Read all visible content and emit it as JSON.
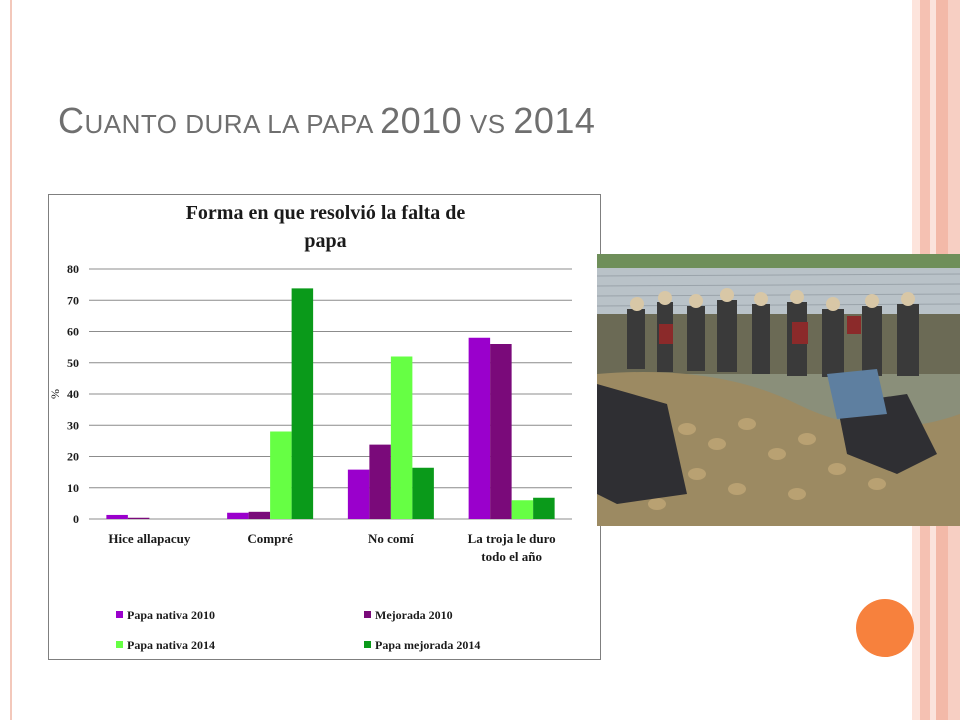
{
  "slide": {
    "title": "Cuanto dura la papa 2010 vs 2014",
    "title_parts": [
      {
        "text": "C",
        "big": true
      },
      {
        "text": "UANTO DURA LA PAPA ",
        "big": false
      },
      {
        "text": "2010",
        "big": true
      },
      {
        "text": " VS ",
        "big": false
      },
      {
        "text": "2014",
        "big": true
      }
    ]
  },
  "colors": {
    "title_text": "#6f6f6f",
    "accent_orange": "#f7813d",
    "accent_pink": "#f2b6a6",
    "accent_pink_light": "#fad8cf"
  },
  "photo": {
    "icon": "photo-icon"
  },
  "chart_data": {
    "type": "bar",
    "title_lines": [
      "Forma en que resolvió la falta de",
      "papa"
    ],
    "ylabel": "%",
    "xlabel": "",
    "ylim": [
      0,
      80
    ],
    "yticks": [
      0,
      10,
      20,
      30,
      40,
      50,
      60,
      70,
      80
    ],
    "grid": true,
    "legend_position": "bottom",
    "categories": [
      "Hice allapacuy",
      "Compré",
      "No comí",
      "La troja le duro todo el año"
    ],
    "category_lines": [
      [
        "Hice allapacuy"
      ],
      [
        "Compré"
      ],
      [
        "No comí"
      ],
      [
        "La troja le duro",
        "todo el año"
      ]
    ],
    "series": [
      {
        "name": "Papa nativa 2010",
        "color": "#9a00cc",
        "values": [
          1.3,
          2.0,
          15.8,
          58.0
        ]
      },
      {
        "name": "Mejorada 2010",
        "color": "#7a0a7a",
        "values": [
          0.4,
          2.3,
          23.8,
          56.0
        ]
      },
      {
        "name": "Papa nativa 2014",
        "color": "#66ff44",
        "values": [
          0,
          28.0,
          52.0,
          6.0
        ]
      },
      {
        "name": "Papa mejorada 2014",
        "color": "#0a9a1a",
        "values": [
          0,
          73.8,
          16.4,
          6.8
        ]
      }
    ]
  }
}
